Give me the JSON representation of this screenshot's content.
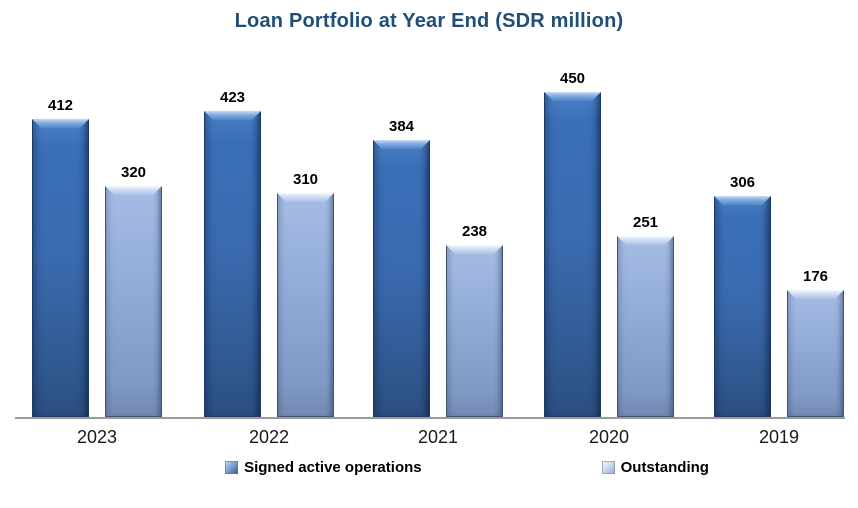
{
  "chart_data": {
    "type": "bar",
    "title": "Loan Portfolio at Year End (SDR million)",
    "categories": [
      "2023",
      "2022",
      "2021",
      "2020",
      "2019"
    ],
    "series": [
      {
        "name": "Signed active operations",
        "key": "signed",
        "color": "#3A6BB0",
        "values": [
          412,
          423,
          384,
          450,
          306
        ]
      },
      {
        "name": "Outstanding",
        "key": "outstanding",
        "color": "#8FA9D6",
        "values": [
          320,
          310,
          238,
          251,
          176
        ]
      }
    ],
    "ylim": [
      0,
      450
    ],
    "grid": false,
    "data_labels": true,
    "legend_position": "bottom",
    "style": {
      "title_color": "#1F4E79",
      "axis_line_color": "#9B9B9B",
      "label_color": "#000000"
    }
  }
}
